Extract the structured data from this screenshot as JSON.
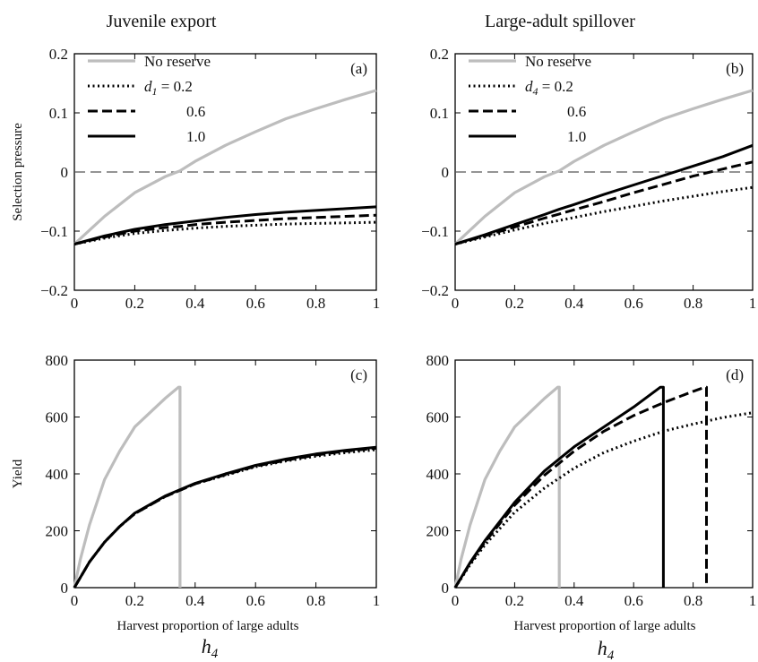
{
  "figure": {
    "column_titles": [
      "Juvenile export",
      "Large-adult spillover"
    ],
    "x_label": "Harvest proportion of large adults",
    "x_symbol": {
      "base": "h",
      "sub": "4"
    }
  },
  "colors": {
    "no_reserve": "#bdbdbd",
    "reserve": "#000000",
    "zero_line": "#555555"
  },
  "chart_data": [
    {
      "panel": "(a)",
      "type": "line",
      "ylabel": "Selection pressure",
      "xlim": [
        0,
        1
      ],
      "ylim": [
        -0.2,
        0.2
      ],
      "xticks": [
        "0",
        "0.2",
        "0.4",
        "0.6",
        "0.8",
        "1"
      ],
      "yticks": [
        "0.2",
        "0.1",
        "0",
        "−0.1",
        "−0.2"
      ],
      "zero_line": true,
      "legend": {
        "var_base": "d",
        "var_sub": "1",
        "entries": [
          "No reserve",
          "= 0.2",
          "0.6",
          "1.0"
        ]
      },
      "x": [
        0,
        0.1,
        0.2,
        0.3,
        0.35,
        0.4,
        0.5,
        0.6,
        0.7,
        0.8,
        0.9,
        1.0
      ],
      "series": [
        {
          "name": "No reserve",
          "style": "gray",
          "values": [
            -0.122,
            -0.075,
            -0.035,
            -0.008,
            0.002,
            0.018,
            0.045,
            0.068,
            0.09,
            0.107,
            0.123,
            0.138
          ]
        },
        {
          "name": "0.2",
          "style": "dotted",
          "values": [
            -0.122,
            -0.112,
            -0.104,
            -0.099,
            -0.097,
            -0.095,
            -0.092,
            -0.09,
            -0.088,
            -0.087,
            -0.086,
            -0.085
          ]
        },
        {
          "name": "0.6",
          "style": "dashed",
          "values": [
            -0.122,
            -0.11,
            -0.1,
            -0.094,
            -0.092,
            -0.089,
            -0.085,
            -0.082,
            -0.079,
            -0.077,
            -0.075,
            -0.073
          ]
        },
        {
          "name": "1.0",
          "style": "solid",
          "values": [
            -0.122,
            -0.108,
            -0.097,
            -0.089,
            -0.086,
            -0.083,
            -0.077,
            -0.072,
            -0.068,
            -0.065,
            -0.062,
            -0.059
          ]
        }
      ]
    },
    {
      "panel": "(b)",
      "type": "line",
      "ylabel": "",
      "xlim": [
        0,
        1
      ],
      "ylim": [
        -0.2,
        0.2
      ],
      "xticks": [
        "0",
        "0.2",
        "0.4",
        "0.6",
        "0.8",
        "1"
      ],
      "yticks": [
        "0.2",
        "0.1",
        "0",
        "−0.1",
        "−0.2"
      ],
      "zero_line": true,
      "legend": {
        "var_base": "d",
        "var_sub": "4",
        "entries": [
          "No reserve",
          "= 0.2",
          "0.6",
          "1.0"
        ]
      },
      "x": [
        0,
        0.1,
        0.2,
        0.3,
        0.35,
        0.4,
        0.5,
        0.6,
        0.7,
        0.8,
        0.9,
        1.0
      ],
      "series": [
        {
          "name": "No reserve",
          "style": "gray",
          "values": [
            -0.122,
            -0.075,
            -0.035,
            -0.008,
            0.002,
            0.018,
            0.045,
            0.068,
            0.09,
            0.107,
            0.123,
            0.138
          ]
        },
        {
          "name": "0.2",
          "style": "dotted",
          "values": [
            -0.122,
            -0.11,
            -0.098,
            -0.087,
            -0.082,
            -0.077,
            -0.067,
            -0.058,
            -0.049,
            -0.041,
            -0.033,
            -0.026
          ]
        },
        {
          "name": "0.6",
          "style": "dashed",
          "values": [
            -0.122,
            -0.108,
            -0.093,
            -0.078,
            -0.071,
            -0.064,
            -0.05,
            -0.035,
            -0.021,
            -0.007,
            0.005,
            0.017
          ]
        },
        {
          "name": "1.0",
          "style": "solid",
          "values": [
            -0.122,
            -0.106,
            -0.089,
            -0.072,
            -0.063,
            -0.055,
            -0.038,
            -0.022,
            -0.006,
            0.01,
            0.026,
            0.045
          ]
        }
      ]
    },
    {
      "panel": "(c)",
      "type": "line",
      "ylabel": "Yield",
      "xlim": [
        0,
        1
      ],
      "ylim": [
        0,
        800
      ],
      "xticks": [
        "0",
        "0.2",
        "0.4",
        "0.6",
        "0.8",
        "1"
      ],
      "yticks": [
        "800",
        "600",
        "400",
        "200",
        "0"
      ],
      "zero_line": false,
      "series": [
        {
          "name": "No reserve",
          "style": "gray",
          "x": [
            0,
            0.02,
            0.05,
            0.1,
            0.15,
            0.2,
            0.25,
            0.3,
            0.345,
            0.35,
            0.35
          ],
          "values": [
            0,
            100,
            220,
            380,
            480,
            565,
            615,
            665,
            705,
            705,
            0
          ]
        },
        {
          "name": "0.2",
          "style": "dotted",
          "x": [
            0,
            0.05,
            0.1,
            0.15,
            0.2,
            0.3,
            0.4,
            0.5,
            0.6,
            0.7,
            0.8,
            0.9,
            1.0
          ],
          "values": [
            0,
            90,
            160,
            215,
            260,
            320,
            365,
            395,
            425,
            445,
            462,
            475,
            485
          ]
        },
        {
          "name": "0.6",
          "style": "dashed",
          "x": [
            0,
            0.05,
            0.1,
            0.15,
            0.2,
            0.3,
            0.4,
            0.5,
            0.6,
            0.7,
            0.8,
            0.9,
            1.0
          ],
          "values": [
            0,
            90,
            160,
            215,
            260,
            320,
            365,
            397,
            427,
            448,
            466,
            480,
            490
          ]
        },
        {
          "name": "1.0",
          "style": "solid",
          "x": [
            0,
            0.05,
            0.1,
            0.15,
            0.2,
            0.3,
            0.4,
            0.5,
            0.6,
            0.7,
            0.8,
            0.9,
            1.0
          ],
          "values": [
            0,
            90,
            160,
            215,
            262,
            322,
            367,
            400,
            430,
            452,
            470,
            483,
            494
          ]
        }
      ]
    },
    {
      "panel": "(d)",
      "type": "line",
      "ylabel": "",
      "xlim": [
        0,
        1
      ],
      "ylim": [
        0,
        800
      ],
      "xticks": [
        "0",
        "0.2",
        "0.4",
        "0.6",
        "0.8",
        "1"
      ],
      "yticks": [
        "800",
        "600",
        "400",
        "200",
        "0"
      ],
      "zero_line": false,
      "series": [
        {
          "name": "No reserve",
          "style": "gray",
          "x": [
            0,
            0.02,
            0.05,
            0.1,
            0.15,
            0.2,
            0.25,
            0.3,
            0.345,
            0.35,
            0.35
          ],
          "values": [
            0,
            100,
            220,
            380,
            480,
            565,
            615,
            665,
            705,
            705,
            0
          ]
        },
        {
          "name": "0.2",
          "style": "dotted",
          "x": [
            0,
            0.05,
            0.1,
            0.2,
            0.3,
            0.4,
            0.5,
            0.6,
            0.7,
            0.8,
            0.9,
            1.0
          ],
          "values": [
            0,
            80,
            150,
            265,
            350,
            420,
            475,
            515,
            550,
            575,
            598,
            615
          ]
        },
        {
          "name": "0.6",
          "style": "dashed",
          "x": [
            0,
            0.05,
            0.1,
            0.2,
            0.3,
            0.4,
            0.5,
            0.6,
            0.7,
            0.8,
            0.84,
            0.845,
            0.845
          ],
          "values": [
            0,
            85,
            160,
            290,
            395,
            480,
            550,
            605,
            650,
            690,
            705,
            705,
            0
          ]
        },
        {
          "name": "1.0",
          "style": "solid",
          "x": [
            0,
            0.05,
            0.1,
            0.2,
            0.3,
            0.4,
            0.5,
            0.6,
            0.69,
            0.7,
            0.7
          ],
          "values": [
            0,
            88,
            165,
            300,
            410,
            495,
            565,
            635,
            705,
            705,
            0
          ]
        }
      ]
    }
  ]
}
